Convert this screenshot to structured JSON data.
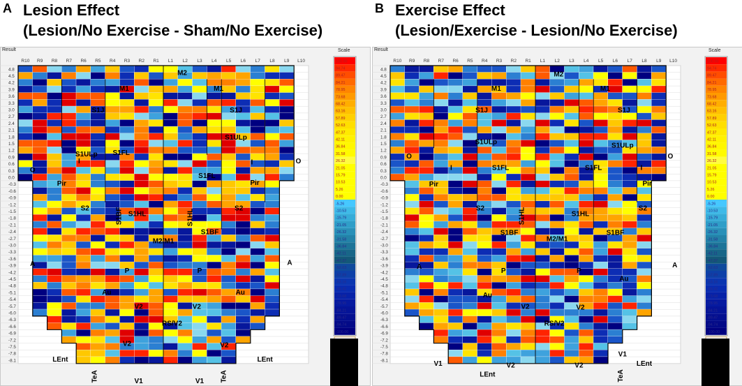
{
  "panels": [
    {
      "letter": "A",
      "title": "Lesion Effect",
      "subtitle": "(Lesion/No Exercise - Sham/No Exercise)",
      "frame_title": "Result",
      "scale_title": "Scale",
      "seed": 17,
      "regions": [
        "M2",
        "M1",
        "M1",
        "S1J",
        "S1J",
        "S1ULp",
        "S1FL",
        "S1ULp",
        "I",
        "O",
        "O",
        "S1FL",
        "I",
        "Pir",
        "Pir",
        "S2",
        "S1BF",
        "S1HL",
        "S1HL",
        "S2",
        "M2/M1",
        "S1BF",
        "A",
        "A",
        "P",
        "P",
        "Au",
        "Au",
        "V2",
        "V2",
        "RS/V2",
        "V2",
        "V2",
        "LEnt",
        "LEnt",
        "TeA",
        "TeA",
        "V1",
        "V1"
      ]
    },
    {
      "letter": "B",
      "title": "Exercise Effect",
      "subtitle": "(Lesion/Exercise - Lesion/No Exercise)",
      "frame_title": "Result",
      "scale_title": "Scale",
      "seed": 53,
      "regions": [
        "M1",
        "M2",
        "M1",
        "S1J",
        "S1J",
        "S1ULp",
        "S1ULp",
        "O",
        "O",
        "I",
        "S1FL",
        "S1FL",
        "I",
        "Pir",
        "Pir",
        "S2",
        "S1HL",
        "S1HL",
        "S2",
        "S1BF",
        "M2/M1",
        "S1BF",
        "A",
        "A",
        "P",
        "P",
        "Au",
        "Au",
        "V2",
        "V2",
        "RS/V2",
        "V2",
        "V2",
        "V1",
        "V1",
        "LEnt",
        "LEnt",
        "TeA",
        "TeA"
      ]
    }
  ],
  "chart_data": {
    "type": "heatmap",
    "x_labels": [
      "R10",
      "R9",
      "R8",
      "R7",
      "R6",
      "R5",
      "R4",
      "R3",
      "R2",
      "R1",
      "L1",
      "L2",
      "L3",
      "L4",
      "L5",
      "L6",
      "L7",
      "L8",
      "L9",
      "L10"
    ],
    "y_labels": [
      "4.8",
      "4.5",
      "4.2",
      "3.9",
      "3.6",
      "3.3",
      "3.0",
      "2.7",
      "2.4",
      "2.1",
      "1.8",
      "1.5",
      "1.2",
      "0.9",
      "0.6",
      "0.3",
      "0.0",
      "-0.3",
      "-0.6",
      "-0.9",
      "-1.2",
      "-1.5",
      "-1.8",
      "-2.1",
      "-2.4",
      "-2.7",
      "-3.0",
      "-3.3",
      "-3.6",
      "-3.9",
      "-4.2",
      "-4.5",
      "-4.8",
      "-5.1",
      "-5.4",
      "-5.7",
      "-6.0",
      "-6.3",
      "-6.6",
      "-6.9",
      "-7.2",
      "-7.5",
      "-7.8",
      "-8.1"
    ],
    "scale_values": [
      "100.00",
      "94.74",
      "89.47",
      "84.21",
      "78.95",
      "73.68",
      "68.42",
      "63.16",
      "57.89",
      "52.63",
      "47.37",
      "42.11",
      "36.84",
      "31.58",
      "26.32",
      "21.05",
      "15.79",
      "10.53",
      "5.26",
      "0.00",
      "-5.26",
      "-10.53",
      "-15.79",
      "-21.05",
      "-26.32",
      "-31.58",
      "-36.84",
      "-42.11",
      "-47.37",
      "-52.63",
      "-57.89",
      "-63.16",
      "-68.42",
      "-73.68",
      "-78.95",
      "-84.21",
      "-89.47",
      "-94.74",
      "-100.00"
    ],
    "scale_colors": [
      "#ff0000",
      "#ff2a00",
      "#ff4d00",
      "#ff6a00",
      "#ff8500",
      "#ff9a00",
      "#ffae00",
      "#ffc000",
      "#ffd000",
      "#ffdf00",
      "#ffea00",
      "#fff200",
      "#fff700",
      "#fffb00",
      "#fffc40",
      "#ffff00",
      "#ffff00",
      "#ffff00",
      "#ffff00",
      "#ffff00",
      "#46c8ff",
      "#3ebae8",
      "#36acd8",
      "#2f9ec8",
      "#2990b8",
      "#2382a8",
      "#1d7498",
      "#186688",
      "#135878",
      "#0f4a9c",
      "#0d40a8",
      "#0b36b0",
      "#092cb0",
      "#0722a8",
      "#061aa0",
      "#051498",
      "#040f90",
      "#030a88",
      "#000080"
    ],
    "value_range": [
      -100,
      100
    ],
    "notes": "Cell values of the 20x44 grid are estimated pseudo-randomly; the plot shows a per-cell percent change map."
  },
  "colors": {
    "frame_bg": "#f2f2f2",
    "empty_cell": "#ffffff",
    "grid_line": "#d4d4d4",
    "border": "#000000"
  }
}
